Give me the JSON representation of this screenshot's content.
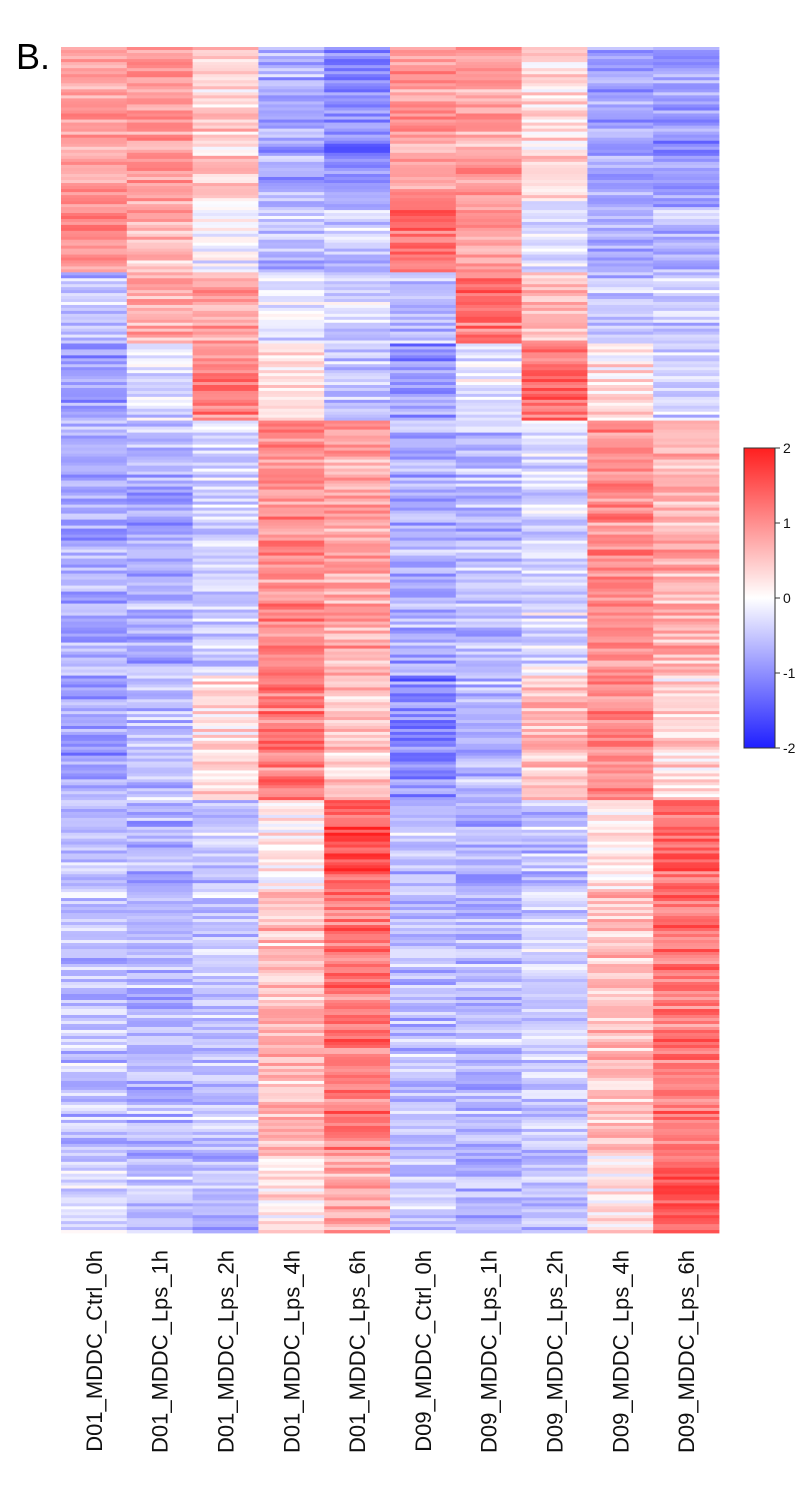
{
  "panel_label": "B.",
  "chart_data": {
    "type": "heatmap",
    "columns": [
      "D01_MDDC_Ctrl_0h",
      "D01_MDDC_Lps_1h",
      "D01_MDDC_Lps_2h",
      "D01_MDDC_Lps_4h",
      "D01_MDDC_Lps_6h",
      "D09_MDDC_Ctrl_0h",
      "D09_MDDC_Lps_1h",
      "D09_MDDC_Lps_2h",
      "D09_MDDC_Lps_4h",
      "D09_MDDC_Lps_6h"
    ],
    "row_blocks": [
      {
        "fraction": 0.13,
        "values": [
          0.8,
          0.9,
          0.4,
          -0.7,
          -1.1,
          0.9,
          0.8,
          0.3,
          -0.8,
          -0.9
        ]
      },
      {
        "fraction": 0.06,
        "values": [
          1.0,
          0.6,
          -0.1,
          -0.6,
          -0.5,
          1.2,
          0.8,
          -0.3,
          -0.8,
          -0.7
        ]
      },
      {
        "fraction": 0.06,
        "values": [
          -0.6,
          0.7,
          0.8,
          -0.3,
          -0.4,
          -0.6,
          1.2,
          0.6,
          -0.6,
          -0.5
        ]
      },
      {
        "fraction": 0.065,
        "values": [
          -0.9,
          -0.3,
          1.1,
          0.3,
          -0.5,
          -1.0,
          -0.2,
          1.3,
          0.2,
          -0.4
        ]
      },
      {
        "fraction": 0.215,
        "values": [
          -0.7,
          -0.7,
          -0.4,
          1.0,
          0.8,
          -0.7,
          -0.6,
          -0.3,
          1.0,
          0.7
        ]
      },
      {
        "fraction": 0.105,
        "values": [
          -0.9,
          -0.6,
          0.3,
          1.1,
          0.4,
          -1.1,
          -0.7,
          0.6,
          1.0,
          0.3
        ]
      },
      {
        "fraction": 0.075,
        "values": [
          -0.5,
          -0.6,
          -0.5,
          0.2,
          1.5,
          -0.5,
          -0.6,
          -0.5,
          0.3,
          1.4
        ]
      },
      {
        "fraction": 0.225,
        "values": [
          -0.5,
          -0.6,
          -0.5,
          0.6,
          1.2,
          -0.6,
          -0.6,
          -0.4,
          0.6,
          1.2
        ]
      },
      {
        "fraction": 0.015,
        "values": [
          -0.3,
          -0.5,
          -0.6,
          0.2,
          0.8,
          -0.5,
          -0.6,
          -0.5,
          0.2,
          1.6
        ]
      }
    ],
    "colorbar": {
      "range": [
        -2,
        2
      ],
      "ticks": [
        "2",
        "1",
        "0",
        "-1",
        "-2"
      ],
      "colors": {
        "low": "#1f1fff",
        "mid": "#ffffff",
        "high": "#ff1f1f"
      }
    },
    "title": "",
    "xlabel": "",
    "ylabel": ""
  }
}
